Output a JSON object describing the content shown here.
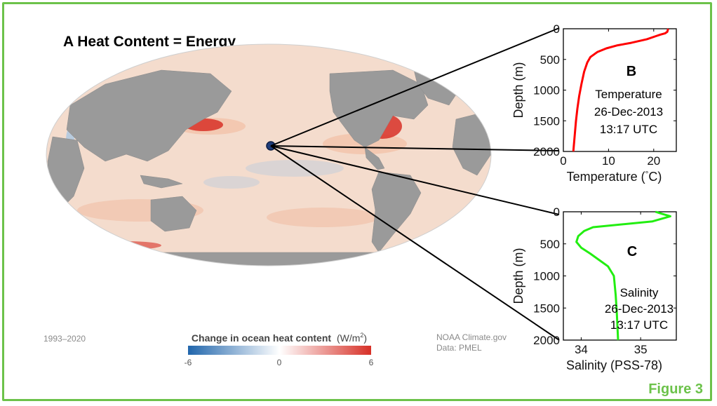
{
  "figure": {
    "label": "Figure 3",
    "accent_color": "#6cc24a"
  },
  "map_panel": {
    "title": "A  Heat Content = Energy",
    "period": "1993–2020",
    "source_line1": "NOAA Climate.gov",
    "source_line2": "Data: PMEL",
    "colorbar": {
      "title": "Change in ocean heat content",
      "unit_prefix": "(W/m",
      "unit_sup": "2",
      "unit_suffix": ")",
      "ticks": [
        "-6",
        "0",
        "6"
      ],
      "min": -6,
      "max": 6,
      "colors": [
        "#2166ac",
        "#ffffff",
        "#d73027"
      ]
    },
    "land_color": "#9a9a9a",
    "ocean_base_color": "#f4dccd"
  },
  "chart_data": [
    {
      "type": "line",
      "panel_letter": "B",
      "annotation": [
        "Temperature",
        "26-Dec-2013",
        "13:17 UTC"
      ],
      "xlabel": "Temperature (°C)",
      "xlabel_prefix": "Temperature (",
      "xlabel_degree": "°",
      "xlabel_suffix": "C)",
      "ylabel": "Depth (m)",
      "xlim": [
        0,
        25
      ],
      "ylim": [
        2000,
        0
      ],
      "xticks": [
        0,
        10,
        20
      ],
      "yticks": [
        0,
        500,
        1000,
        1500,
        2000
      ],
      "line_color": "#ff0000",
      "series": [
        {
          "x": [
            23.2,
            23.0,
            22.5,
            21.5,
            20.5,
            18.5,
            15.0,
            12.0,
            9.5,
            7.5,
            6.0,
            5.3,
            4.6,
            4.0,
            3.5,
            3.1,
            2.8,
            2.5,
            2.2
          ],
          "y": [
            0,
            50,
            75,
            95,
            120,
            170,
            230,
            270,
            320,
            380,
            460,
            550,
            700,
            900,
            1100,
            1300,
            1500,
            1750,
            2000
          ]
        }
      ]
    },
    {
      "type": "line",
      "panel_letter": "C",
      "annotation": [
        "Salinity",
        "26-Dec-2013",
        "13:17 UTC"
      ],
      "xlabel": "Salinity (PSS-78)",
      "ylabel": "Depth (m)",
      "xlim": [
        33.7,
        35.6
      ],
      "ylim": [
        2000,
        0
      ],
      "xticks": [
        34,
        35
      ],
      "yticks": [
        0,
        500,
        1000,
        1500,
        2000
      ],
      "line_color": "#22ee11",
      "series": [
        {
          "x": [
            35.25,
            35.35,
            35.5,
            35.2,
            34.2,
            34.05,
            33.95,
            33.92,
            34.0,
            34.15,
            34.3,
            34.45,
            34.55,
            34.58,
            34.6,
            34.62
          ],
          "y": [
            0,
            30,
            70,
            150,
            240,
            300,
            380,
            470,
            560,
            650,
            750,
            850,
            1000,
            1300,
            1600,
            2000
          ]
        }
      ]
    }
  ]
}
